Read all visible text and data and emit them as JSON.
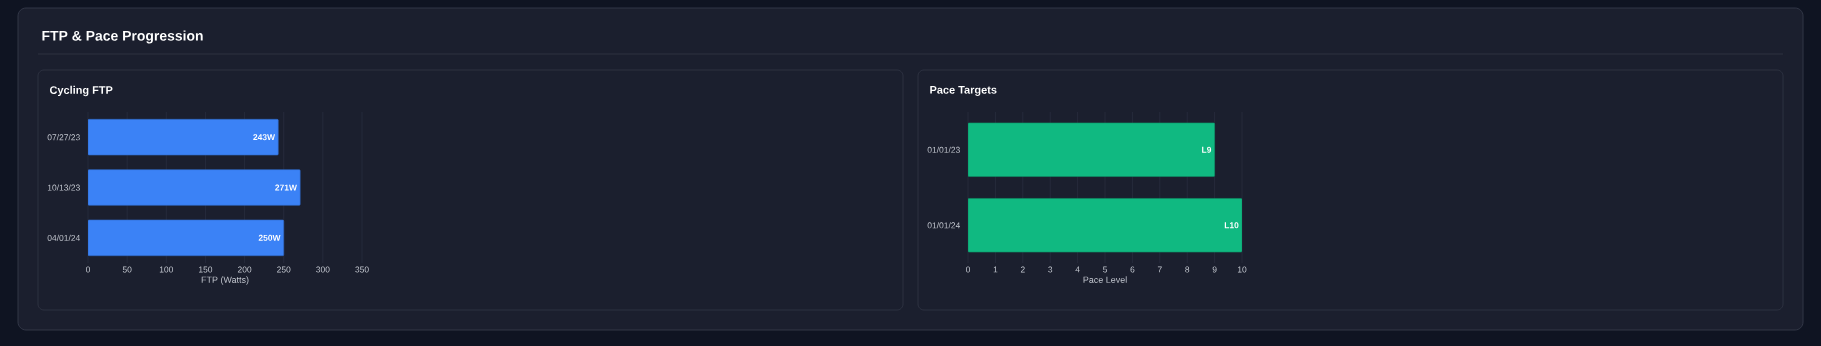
{
  "chart_data": [
    {
      "type": "other",
      "title": "FTP & Pace Progression"
    },
    {
      "type": "bar",
      "title": "Cycling FTP",
      "orientation": "horizontal",
      "categories": [
        "07/27/23",
        "10/13/23",
        "04/01/24"
      ],
      "values": [
        243,
        271,
        250
      ],
      "value_labels": [
        "243W",
        "271W",
        "250W"
      ],
      "color": "#3b82f6",
      "xlabel": "FTP (Watts)",
      "xlim": [
        0,
        350
      ],
      "xticks": [
        0,
        50,
        100,
        150,
        200,
        250,
        300,
        350
      ],
      "grid": "x"
    },
    {
      "type": "bar",
      "title": "Pace Targets",
      "orientation": "horizontal",
      "categories": [
        "01/01/23",
        "01/01/24"
      ],
      "values": [
        9,
        10
      ],
      "value_labels": [
        "L9",
        "L10"
      ],
      "color": "#10b981",
      "xlabel": "Pace Level",
      "xlim": [
        0,
        10
      ],
      "xticks": [
        0,
        1,
        2,
        3,
        4,
        5,
        6,
        7,
        8,
        9,
        10
      ],
      "grid": "x"
    }
  ]
}
